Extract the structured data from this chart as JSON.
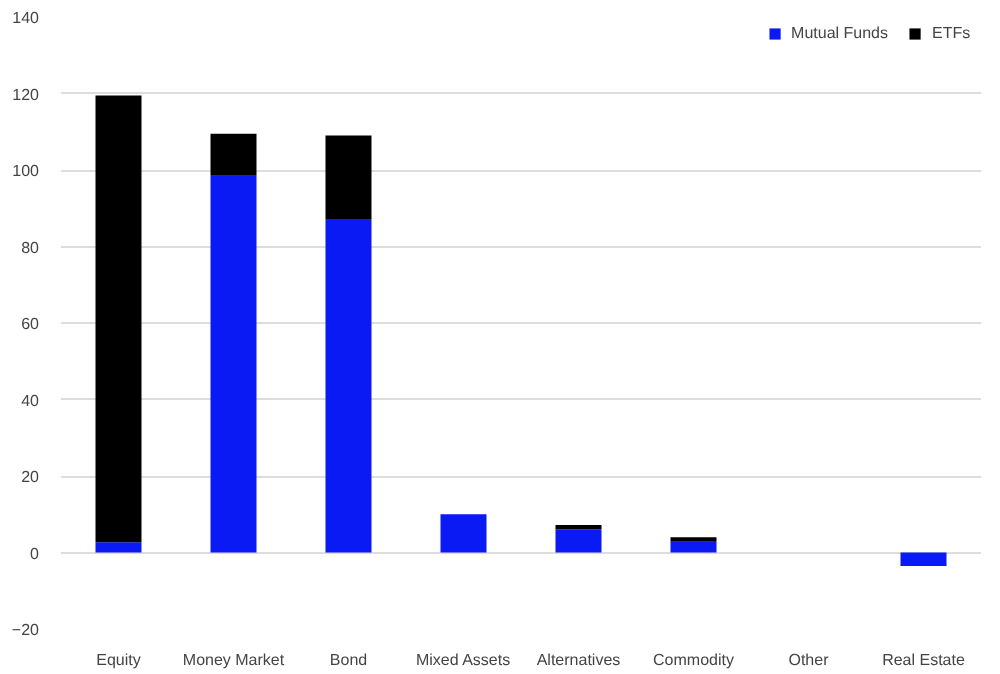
{
  "chart_data": {
    "type": "bar",
    "stacked": true,
    "categories": [
      "Equity",
      "Money Market",
      "Bond",
      "Mixed Assets",
      "Alternatives",
      "Commodity",
      "Other",
      "Real Estate"
    ],
    "series": [
      {
        "name": "Mutual Funds",
        "color": "#0a1af5",
        "values": [
          2.7,
          98.5,
          87,
          10,
          6,
          2.8,
          0,
          -3.5
        ]
      },
      {
        "name": "ETFs",
        "color": "#000000",
        "values": [
          116.8,
          11,
          22,
          0,
          1.2,
          1.2,
          0,
          0
        ]
      }
    ],
    "ylim": [
      -20,
      140
    ],
    "yticks": [
      -20,
      0,
      20,
      40,
      60,
      80,
      100,
      120,
      140
    ],
    "grid": "y",
    "legend": "top right"
  }
}
